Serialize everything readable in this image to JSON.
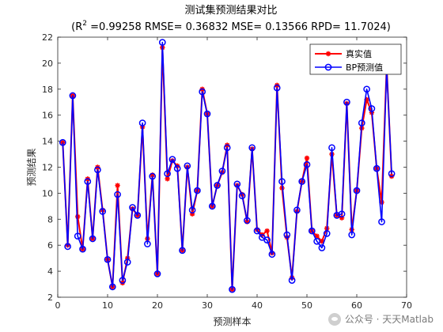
{
  "chart_data": {
    "type": "line",
    "title": "测试集预测结果对比",
    "subtitle_parts": {
      "r2_prefix": "(R",
      "r2_sup": "2",
      "rest": " =0.99258 RMSE= 0.36832 MSE= 0.13566 RPD= 11.7024)"
    },
    "xlabel": "预测样本",
    "ylabel": "预测结果",
    "xlim": [
      0,
      70
    ],
    "ylim": [
      2,
      22
    ],
    "xticks": [
      0,
      10,
      20,
      30,
      40,
      50,
      60,
      70
    ],
    "yticks": [
      2,
      4,
      6,
      8,
      10,
      12,
      14,
      16,
      18,
      20,
      22
    ],
    "legend_position": "top-right",
    "x": [
      1,
      2,
      3,
      4,
      5,
      6,
      7,
      8,
      9,
      10,
      11,
      12,
      13,
      14,
      15,
      16,
      17,
      18,
      19,
      20,
      21,
      22,
      23,
      24,
      25,
      26,
      27,
      28,
      29,
      30,
      31,
      32,
      33,
      34,
      35,
      36,
      37,
      38,
      39,
      40,
      41,
      42,
      43,
      44,
      45,
      46,
      47,
      48,
      49,
      50,
      51,
      52,
      53,
      54,
      55,
      56,
      57,
      58,
      59,
      60,
      61,
      62,
      63,
      64,
      65,
      66,
      67
    ],
    "series": [
      {
        "name": "真实值",
        "color": "#ff0000",
        "marker": "asterisk",
        "values": [
          13.9,
          6.0,
          17.5,
          8.2,
          5.7,
          11.1,
          6.5,
          12.0,
          8.7,
          4.9,
          2.8,
          10.6,
          3.1,
          5.0,
          8.8,
          8.3,
          15.1,
          6.5,
          11.4,
          3.8,
          21.2,
          11.1,
          12.5,
          12.1,
          5.6,
          12.0,
          8.4,
          10.2,
          18.0,
          16.1,
          9.0,
          10.6,
          11.6,
          13.7,
          2.6,
          10.6,
          9.9,
          7.8,
          13.4,
          7.2,
          6.8,
          7.1,
          5.4,
          18.3,
          10.4,
          6.6,
          3.5,
          8.6,
          10.9,
          12.7,
          7.1,
          6.7,
          6.3,
          7.3,
          13.0,
          8.3,
          8.1,
          16.9,
          7.2,
          10.2,
          15.0,
          17.2,
          16.2,
          11.9,
          9.3,
          19.8,
          11.3
        ]
      },
      {
        "name": "BP预测值",
        "color": "#0000ff",
        "marker": "circle",
        "values": [
          13.9,
          5.9,
          17.5,
          6.7,
          5.7,
          10.9,
          6.5,
          11.8,
          8.6,
          4.9,
          2.8,
          9.9,
          3.3,
          4.7,
          8.9,
          8.3,
          15.4,
          6.1,
          11.3,
          3.8,
          21.6,
          11.5,
          12.6,
          11.9,
          5.6,
          12.1,
          8.7,
          10.2,
          17.8,
          16.1,
          9.0,
          10.6,
          11.7,
          13.5,
          2.6,
          10.7,
          9.8,
          7.9,
          13.5,
          7.1,
          6.6,
          6.4,
          5.3,
          18.1,
          10.9,
          6.8,
          3.3,
          8.7,
          10.9,
          12.2,
          7.1,
          6.3,
          5.8,
          6.9,
          13.5,
          8.3,
          8.4,
          17.0,
          6.8,
          10.2,
          15.4,
          18.0,
          16.5,
          11.9,
          7.8,
          19.6,
          11.5
        ]
      }
    ]
  },
  "watermark": {
    "text": "公众号 · 天天Matlab",
    "icon": "wechat-icon"
  }
}
